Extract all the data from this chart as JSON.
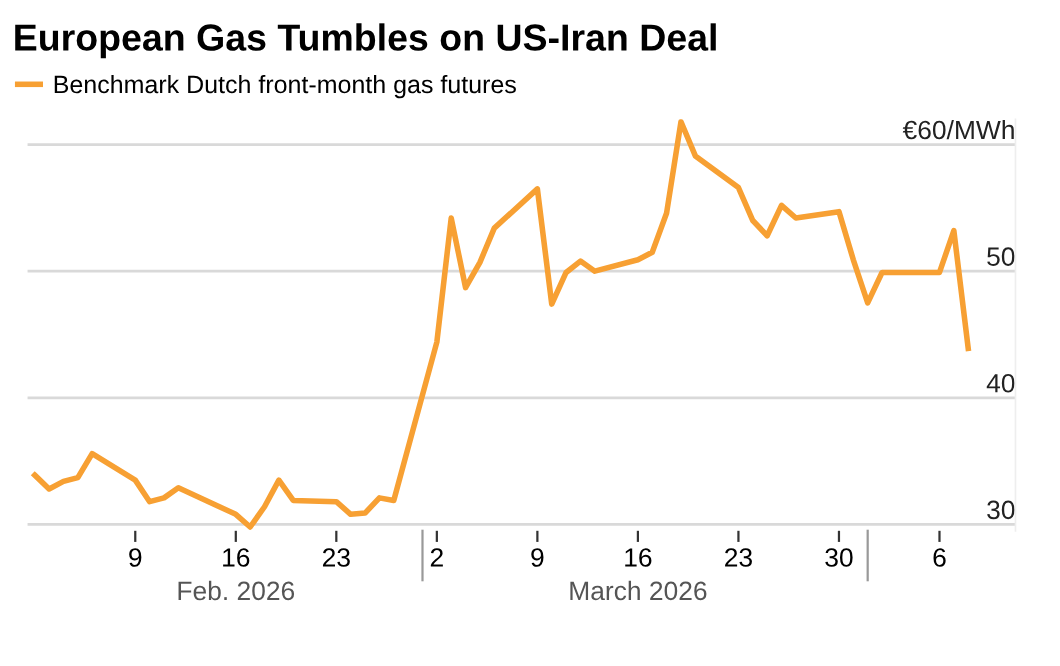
{
  "chart_data": {
    "type": "line",
    "title": "European Gas Tumbles on US-Iran Deal",
    "x": [
      "2026-02-02",
      "2026-02-03",
      "2026-02-04",
      "2026-02-05",
      "2026-02-06",
      "2026-02-09",
      "2026-02-10",
      "2026-02-11",
      "2026-02-12",
      "2026-02-16",
      "2026-02-17",
      "2026-02-18",
      "2026-02-19",
      "2026-02-20",
      "2026-02-23",
      "2026-02-24",
      "2026-02-25",
      "2026-02-26",
      "2026-02-27",
      "2026-03-02",
      "2026-03-03",
      "2026-03-04",
      "2026-03-05",
      "2026-03-06",
      "2026-03-09",
      "2026-03-10",
      "2026-03-11",
      "2026-03-12",
      "2026-03-13",
      "2026-03-16",
      "2026-03-17",
      "2026-03-18",
      "2026-03-19",
      "2026-03-20",
      "2026-03-23",
      "2026-03-24",
      "2026-03-25",
      "2026-03-26",
      "2026-03-27",
      "2026-03-30",
      "2026-03-31",
      "2026-04-01",
      "2026-04-02",
      "2026-04-06",
      "2026-04-07",
      "2026-04-08"
    ],
    "series": [
      {
        "name": "Benchmark Dutch front-month gas futures",
        "color": "#f7a033",
        "values": [
          33.9,
          32.8,
          33.4,
          33.7,
          35.6,
          33.5,
          31.8,
          32.1,
          32.9,
          30.8,
          29.8,
          31.4,
          33.5,
          31.9,
          31.8,
          30.8,
          30.9,
          32.1,
          31.9,
          44.4,
          54.2,
          48.7,
          50.7,
          53.4,
          56.5,
          47.4,
          49.9,
          50.8,
          50.0,
          50.9,
          51.5,
          54.6,
          61.8,
          59.1,
          56.6,
          54.0,
          52.8,
          55.2,
          54.2,
          54.7,
          50.9,
          47.5,
          49.9,
          49.9,
          53.2,
          43.9
        ]
      }
    ],
    "xlim": [
      "2026-02-01T12:00",
      "2026-04-11T07:00"
    ],
    "xticks": [
      {
        "value": "2026-02-09",
        "label": "9"
      },
      {
        "value": "2026-02-16",
        "label": "16"
      },
      {
        "value": "2026-02-23",
        "label": "23"
      },
      {
        "value": "2026-03-02",
        "label": "2"
      },
      {
        "value": "2026-03-09",
        "label": "9"
      },
      {
        "value": "2026-03-16",
        "label": "16"
      },
      {
        "value": "2026-03-23",
        "label": "23"
      },
      {
        "value": "2026-03-30",
        "label": "30"
      },
      {
        "value": "2026-04-06",
        "label": "6"
      }
    ],
    "x2lim": [
      "2026-02-01T12:00",
      "2026-04-11T07:00"
    ],
    "x2ticks": [
      {
        "value": "2026-02-16",
        "label": "Feb. 2026"
      },
      {
        "value": "2026-03-16",
        "label": "March 2026"
      }
    ],
    "ylim": [
      29.5,
      62
    ],
    "yticks": [
      30,
      40,
      50,
      {
        "value": 60,
        "label": "€60/MWh"
      }
    ],
    "grid": "y",
    "legend": "top left",
    "line_style": "solid",
    "marker": "none"
  }
}
